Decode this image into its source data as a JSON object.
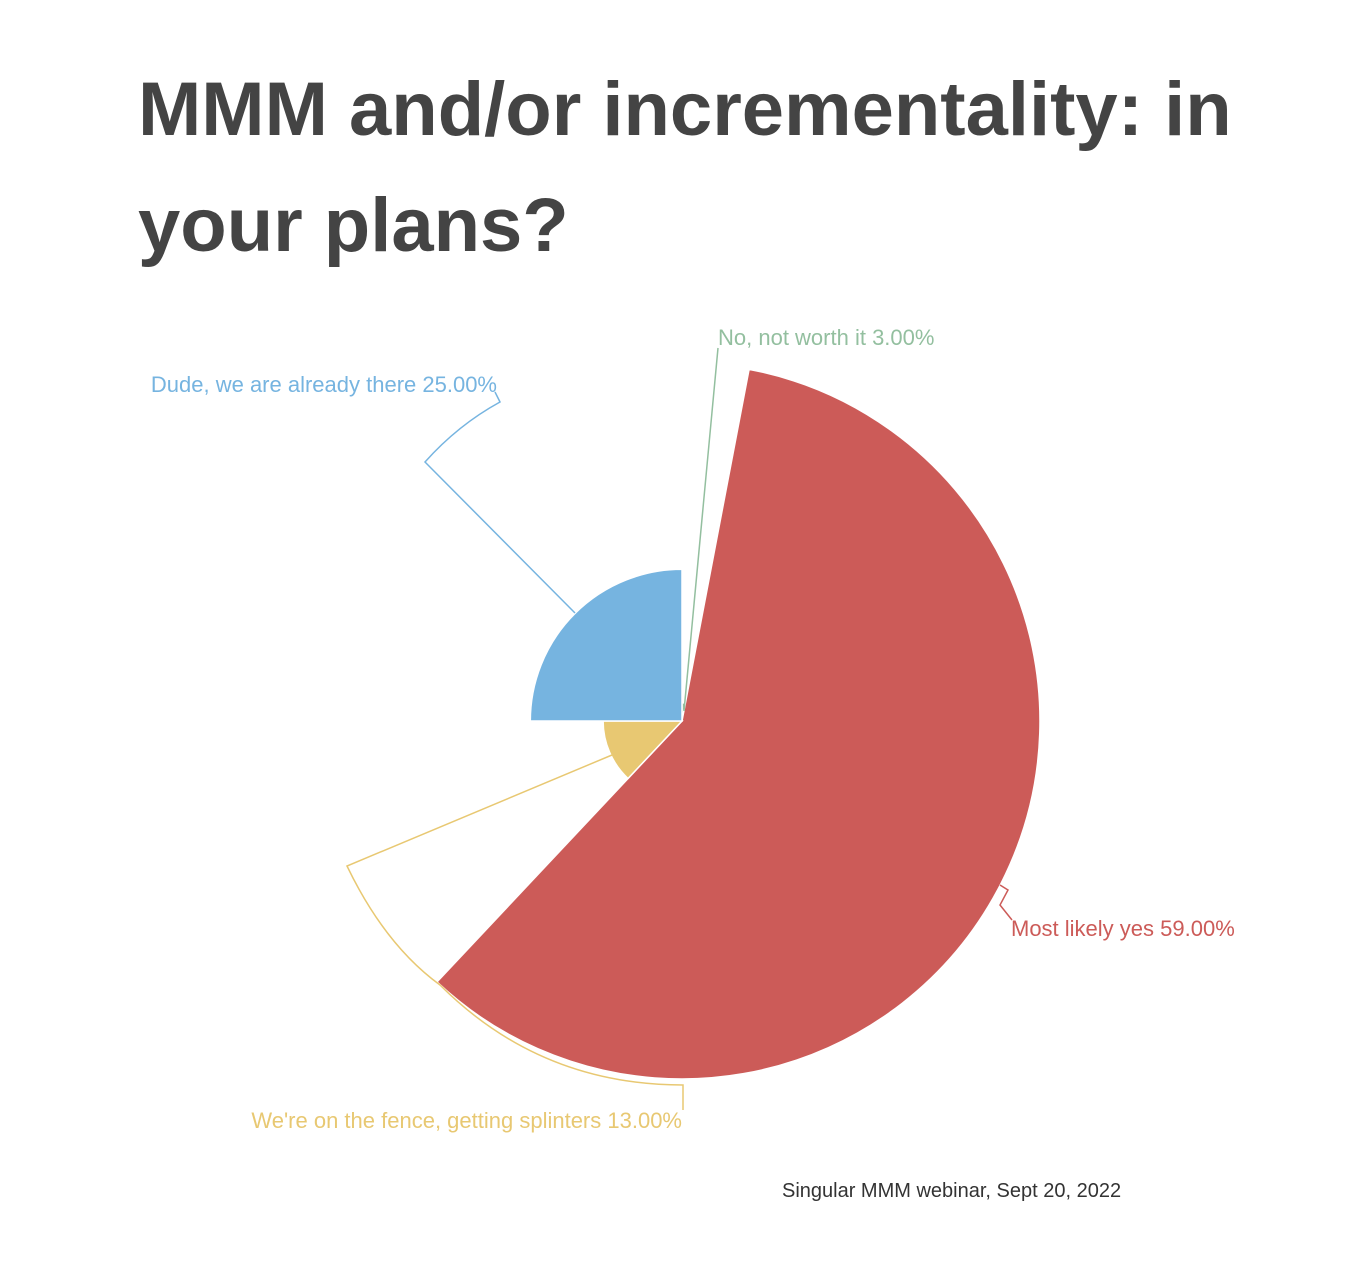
{
  "title": "MMM and/or incrementality: in your plans?",
  "source": "Singular MMM webinar, Sept 20, 2022",
  "chart_data": {
    "type": "pie",
    "variant": "polar-area (radius proportional to value)",
    "slices": [
      {
        "label": "No, not worth it",
        "value": 3.0,
        "display": "No, not worth it 3.00%",
        "color": "#93bf9f"
      },
      {
        "label": "Most likely yes",
        "value": 59.0,
        "display": "Most likely yes 59.00%",
        "color": "#cc5b58"
      },
      {
        "label": "We're on the fence, getting splinters",
        "value": 13.0,
        "display": "We're on the fence, getting splinters 13.00%",
        "color": "#e8c872"
      },
      {
        "label": "Dude, we are already there",
        "value": 25.0,
        "display": "Dude, we are already there 25.00%",
        "color": "#76b4e0"
      }
    ]
  }
}
